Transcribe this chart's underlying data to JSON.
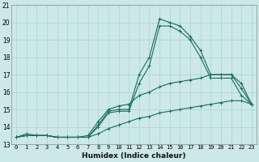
{
  "title": "",
  "xlabel": "Humidex (Indice chaleur)",
  "ylabel": "",
  "bg_color": "#cce8e8",
  "line_color": "#1a6b5e",
  "xlim": [
    -0.5,
    23.5
  ],
  "ylim": [
    13,
    21
  ],
  "yticks": [
    13,
    14,
    15,
    16,
    17,
    18,
    19,
    20,
    21
  ],
  "xticks": [
    0,
    1,
    2,
    3,
    4,
    5,
    6,
    7,
    8,
    9,
    10,
    11,
    12,
    13,
    14,
    15,
    16,
    17,
    18,
    19,
    20,
    21,
    22,
    23
  ],
  "series": [
    [
      13.4,
      13.6,
      13.5,
      13.5,
      13.4,
      13.4,
      13.4,
      13.4,
      14.1,
      14.9,
      15.0,
      15.0,
      17.0,
      18.0,
      20.2,
      20.0,
      19.8,
      19.2,
      18.4,
      17.0,
      17.0,
      17.0,
      16.2,
      15.3
    ],
    [
      13.4,
      13.5,
      13.5,
      13.5,
      13.4,
      13.4,
      13.4,
      13.4,
      14.0,
      14.8,
      14.9,
      14.9,
      16.5,
      17.5,
      19.8,
      19.8,
      19.5,
      19.0,
      18.0,
      16.8,
      16.8,
      16.8,
      15.8,
      15.3
    ],
    [
      13.4,
      13.5,
      13.5,
      13.5,
      13.4,
      13.4,
      13.4,
      13.5,
      14.3,
      15.0,
      15.2,
      15.3,
      15.8,
      16.0,
      16.3,
      16.5,
      16.6,
      16.7,
      16.8,
      17.0,
      17.0,
      17.0,
      16.5,
      15.3
    ],
    [
      13.4,
      13.5,
      13.5,
      13.5,
      13.4,
      13.4,
      13.4,
      13.4,
      13.6,
      13.9,
      14.1,
      14.3,
      14.5,
      14.6,
      14.8,
      14.9,
      15.0,
      15.1,
      15.2,
      15.3,
      15.4,
      15.5,
      15.5,
      15.3
    ]
  ],
  "xlabel_fontsize": 6.5,
  "tick_fontsize": 5.0,
  "ytick_fontsize": 5.5
}
